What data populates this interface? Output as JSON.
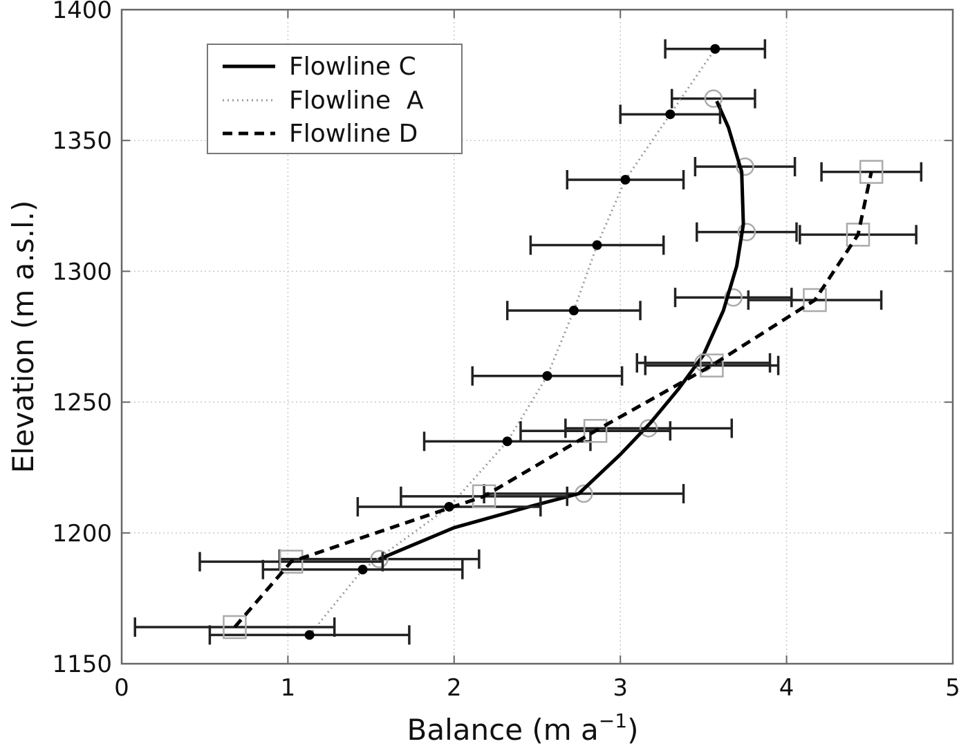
{
  "chart_data": {
    "type": "scatter",
    "title": "",
    "xlabel": "Balance (m a",
    "xlabel_sup": "−1",
    "xlabel_close": ")",
    "ylabel": "Elevation (m a.s.l.)",
    "xlim": [
      0,
      5
    ],
    "ylim": [
      1150,
      1400
    ],
    "xticks": [
      "0",
      "1",
      "2",
      "3",
      "4",
      "5"
    ],
    "yticks": [
      "1150",
      "1200",
      "1250",
      "1300",
      "1350",
      "1400"
    ],
    "xtick_values": [
      0,
      1,
      2,
      3,
      4,
      5
    ],
    "ytick_values": [
      1150,
      1200,
      1250,
      1300,
      1350,
      1400
    ],
    "grid": true,
    "legend_position": "top-left",
    "series": [
      {
        "name": "Flowline C",
        "line_style": "solid",
        "marker": "circle-open",
        "line": [
          {
            "x": 1.55,
            "y": 1190
          },
          {
            "x": 2.0,
            "y": 1202
          },
          {
            "x": 2.45,
            "y": 1210
          },
          {
            "x": 2.75,
            "y": 1215
          },
          {
            "x": 3.0,
            "y": 1230
          },
          {
            "x": 3.18,
            "y": 1242
          },
          {
            "x": 3.35,
            "y": 1255
          },
          {
            "x": 3.5,
            "y": 1268
          },
          {
            "x": 3.62,
            "y": 1285
          },
          {
            "x": 3.7,
            "y": 1302
          },
          {
            "x": 3.74,
            "y": 1318
          },
          {
            "x": 3.73,
            "y": 1338
          },
          {
            "x": 3.65,
            "y": 1355
          },
          {
            "x": 3.58,
            "y": 1365
          }
        ],
        "points": [
          {
            "x": 1.55,
            "y": 1190,
            "err": 0.6
          },
          {
            "x": 2.78,
            "y": 1215,
            "err": 0.6
          },
          {
            "x": 3.17,
            "y": 1240,
            "err": 0.5
          },
          {
            "x": 3.5,
            "y": 1265,
            "err": 0.4
          },
          {
            "x": 3.68,
            "y": 1290,
            "err": 0.35
          },
          {
            "x": 3.76,
            "y": 1315,
            "err": 0.3
          },
          {
            "x": 3.75,
            "y": 1340,
            "err": 0.3
          },
          {
            "x": 3.56,
            "y": 1366,
            "err": 0.25
          }
        ]
      },
      {
        "name": "Flowline  A",
        "line_style": "dotted",
        "marker": "dot",
        "line": [
          {
            "x": 1.13,
            "y": 1161
          },
          {
            "x": 1.45,
            "y": 1186
          },
          {
            "x": 1.97,
            "y": 1210
          },
          {
            "x": 2.32,
            "y": 1235
          },
          {
            "x": 2.56,
            "y": 1260
          },
          {
            "x": 2.72,
            "y": 1285
          },
          {
            "x": 2.86,
            "y": 1310
          },
          {
            "x": 3.03,
            "y": 1335
          },
          {
            "x": 3.3,
            "y": 1360
          },
          {
            "x": 3.57,
            "y": 1385
          }
        ],
        "points": [
          {
            "x": 1.13,
            "y": 1161,
            "err": 0.6
          },
          {
            "x": 1.45,
            "y": 1186,
            "err": 0.6
          },
          {
            "x": 1.97,
            "y": 1210,
            "err": 0.55
          },
          {
            "x": 2.32,
            "y": 1235,
            "err": 0.5
          },
          {
            "x": 2.56,
            "y": 1260,
            "err": 0.45
          },
          {
            "x": 2.72,
            "y": 1285,
            "err": 0.4
          },
          {
            "x": 2.86,
            "y": 1310,
            "err": 0.4
          },
          {
            "x": 3.03,
            "y": 1335,
            "err": 0.35
          },
          {
            "x": 3.3,
            "y": 1360,
            "err": 0.3
          },
          {
            "x": 3.57,
            "y": 1385,
            "err": 0.3
          }
        ]
      },
      {
        "name": "Flowline D",
        "line_style": "dashed",
        "marker": "square-open",
        "line": [
          {
            "x": 0.68,
            "y": 1164
          },
          {
            "x": 1.02,
            "y": 1189
          },
          {
            "x": 2.18,
            "y": 1214
          },
          {
            "x": 2.85,
            "y": 1239
          },
          {
            "x": 3.55,
            "y": 1264
          },
          {
            "x": 4.17,
            "y": 1289
          },
          {
            "x": 4.43,
            "y": 1314
          },
          {
            "x": 4.51,
            "y": 1338
          }
        ],
        "points": [
          {
            "x": 0.68,
            "y": 1164,
            "err": 0.6
          },
          {
            "x": 1.02,
            "y": 1189,
            "err": 0.55
          },
          {
            "x": 2.18,
            "y": 1214,
            "err": 0.5
          },
          {
            "x": 2.85,
            "y": 1239,
            "err": 0.45
          },
          {
            "x": 3.55,
            "y": 1264,
            "err": 0.4
          },
          {
            "x": 4.17,
            "y": 1289,
            "err": 0.4
          },
          {
            "x": 4.43,
            "y": 1314,
            "err": 0.35
          },
          {
            "x": 4.51,
            "y": 1338,
            "err": 0.3
          }
        ]
      }
    ]
  }
}
